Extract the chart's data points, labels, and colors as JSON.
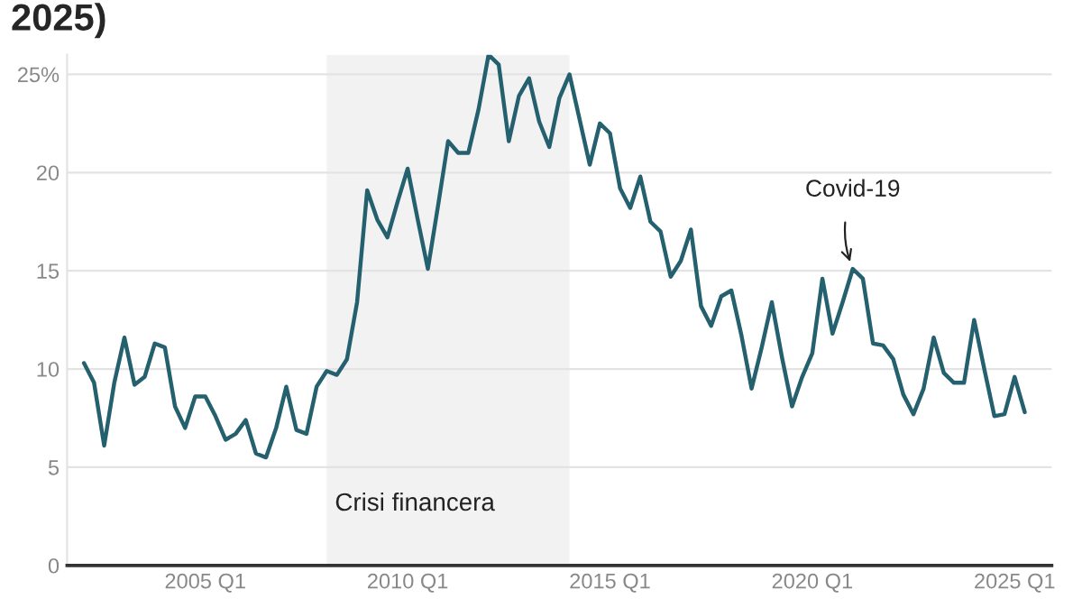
{
  "chart_data": {
    "type": "line",
    "title": "2025)",
    "x": [
      "2002-01",
      "2002-04",
      "2002-07",
      "2002-10",
      "2003-01",
      "2003-04",
      "2003-07",
      "2003-10",
      "2004-01",
      "2004-04",
      "2004-07",
      "2004-10",
      "2005-01",
      "2005-04",
      "2005-07",
      "2005-10",
      "2006-01",
      "2006-04",
      "2006-07",
      "2006-10",
      "2007-01",
      "2007-04",
      "2007-07",
      "2007-10",
      "2008-01",
      "2008-04",
      "2008-07",
      "2008-10",
      "2009-01",
      "2009-04",
      "2009-07",
      "2009-10",
      "2010-01",
      "2010-04",
      "2010-07",
      "2010-10",
      "2011-01",
      "2011-04",
      "2011-07",
      "2011-10",
      "2012-01",
      "2012-04",
      "2012-07",
      "2012-10",
      "2013-01",
      "2013-04",
      "2013-07",
      "2013-10",
      "2014-01",
      "2014-04",
      "2014-07",
      "2014-10",
      "2015-01",
      "2015-04",
      "2015-07",
      "2015-10",
      "2016-01",
      "2016-04",
      "2016-07",
      "2016-10",
      "2017-01",
      "2017-04",
      "2017-07",
      "2017-10",
      "2018-01",
      "2018-04",
      "2018-07",
      "2018-10",
      "2019-01",
      "2019-04",
      "2019-07",
      "2019-10",
      "2020-01",
      "2020-04",
      "2020-07",
      "2020-10",
      "2021-01",
      "2021-04",
      "2021-07",
      "2021-10",
      "2022-01",
      "2022-04",
      "2022-07",
      "2022-10",
      "2023-01",
      "2023-04",
      "2023-07",
      "2023-10",
      "2024-01",
      "2024-04",
      "2024-07",
      "2024-10",
      "2025-01",
      "2025-04"
    ],
    "series": [
      {
        "color": "#25606f",
        "values": [
          10.3,
          9.3,
          6.1,
          9.3,
          11.6,
          9.2,
          9.6,
          11.3,
          11.1,
          8.1,
          7.0,
          8.6,
          8.6,
          7.6,
          6.4,
          6.7,
          7.4,
          5.7,
          5.5,
          7.0,
          9.1,
          6.9,
          6.7,
          9.1,
          9.9,
          9.7,
          10.5,
          13.4,
          19.1,
          17.6,
          16.7,
          18.5,
          20.2,
          17.6,
          15.1,
          18.3,
          21.6,
          21.0,
          21.0,
          23.2,
          26.0,
          25.5,
          21.6,
          23.9,
          24.8,
          22.6,
          21.3,
          23.8,
          25.0,
          22.7,
          20.4,
          22.5,
          22.0,
          19.2,
          18.2,
          19.8,
          17.5,
          17.0,
          14.7,
          15.5,
          17.1,
          13.2,
          12.2,
          13.7,
          14.0,
          11.7,
          9.0,
          11.1,
          13.4,
          10.6,
          8.1,
          9.6,
          10.8,
          14.6,
          11.8,
          13.4,
          15.1,
          14.6,
          11.3,
          11.2,
          10.5,
          8.7,
          7.7,
          9.0,
          11.6,
          9.8,
          9.3,
          9.3,
          12.5,
          10.0,
          7.6,
          7.7,
          9.6,
          7.8
        ]
      }
    ],
    "xlim": [
      "2001-08",
      "2025-12"
    ],
    "xticks": [
      {
        "value": "2005-01",
        "label": "2005 Q1"
      },
      {
        "value": "2010-01",
        "label": "2010 Q1"
      },
      {
        "value": "2015-01",
        "label": "2015 Q1"
      },
      {
        "value": "2020-01",
        "label": "2020 Q1"
      },
      {
        "value": "2025-01",
        "label": "2025 Q1"
      }
    ],
    "ylim": [
      0,
      26
    ],
    "yticks": [
      0,
      5,
      10,
      15,
      20,
      {
        "value": 25,
        "label": "25%"
      }
    ],
    "grid": "y",
    "bands": [
      {
        "axis": "x",
        "from": "2008-01",
        "to": "2014-01",
        "label": "Crisi financera",
        "color": "#f2f2f2"
      }
    ],
    "annotations": [
      {
        "text": "Covid-19",
        "x": "2021-01",
        "y": 15.1
      }
    ]
  }
}
